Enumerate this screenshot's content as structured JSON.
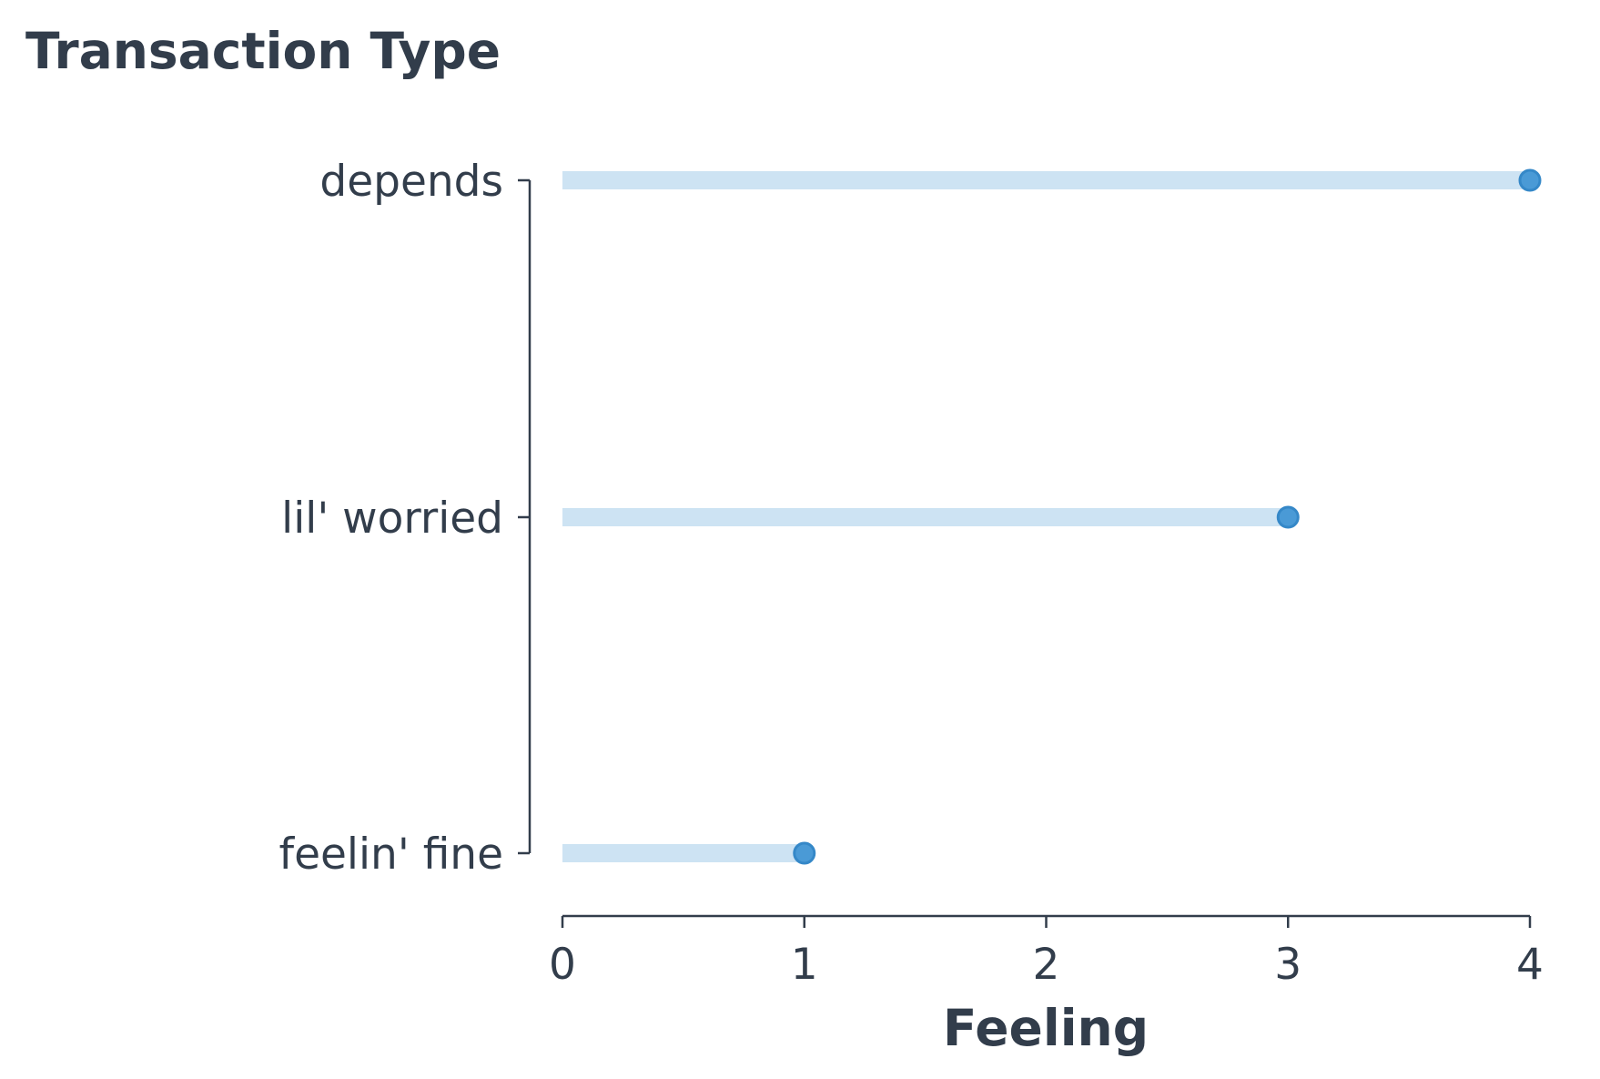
{
  "chart_data": {
    "type": "lollipop",
    "title": "Transaction Type",
    "xlabel": "Feeling",
    "ylabel": "",
    "categories": [
      "depends",
      "lil' worried",
      "feelin' fine"
    ],
    "values": [
      4,
      3,
      1
    ],
    "xlim": [
      0,
      4
    ],
    "xticks": [
      "0",
      "1",
      "2",
      "3",
      "4"
    ],
    "grid": false,
    "legend": "none",
    "colors": {
      "stem": "#cde3f3",
      "marker_fill": "#4a9ad6",
      "marker_edge": "#3588c8",
      "text": "#323d4b",
      "axis": "#323d4b"
    }
  }
}
